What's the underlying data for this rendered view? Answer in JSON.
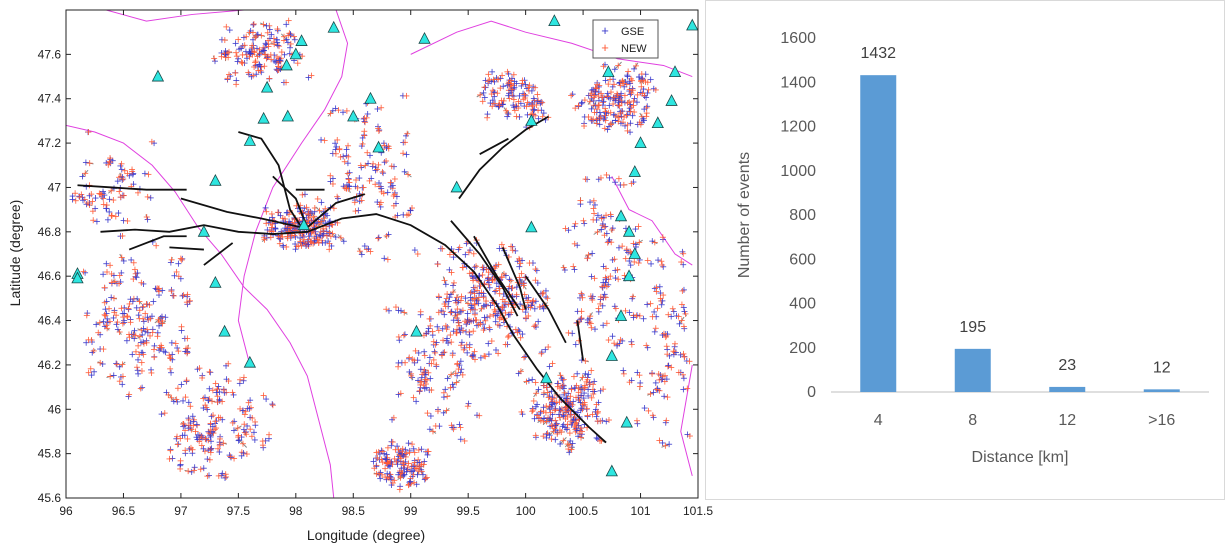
{
  "chart_data": [
    {
      "type": "scatter",
      "xlabel": "Longitude (degree)",
      "ylabel": "Latitude (degree)",
      "xlim": [
        96,
        101.5
      ],
      "ylim": [
        45.6,
        47.8
      ],
      "xticks": [
        "96",
        "96.5",
        "97",
        "97.5",
        "98",
        "98.5",
        "99",
        "99.5",
        "100",
        "100.5",
        "101",
        "101.5"
      ],
      "yticks": [
        "45.6",
        "45.8",
        "46",
        "46.2",
        "46.4",
        "46.6",
        "46.8",
        "47",
        "47.2",
        "47.4",
        "47.6"
      ],
      "legend": {
        "position": "top-right",
        "entries": [
          "GSE",
          "NEW"
        ]
      },
      "series": [
        {
          "name": "GSE",
          "color": "#3a3acc",
          "marker": "+"
        },
        {
          "name": "NEW",
          "color": "#ff5a36",
          "marker": "+"
        }
      ],
      "stations": [
        [
          96.8,
          47.5
        ],
        [
          97.3,
          47.03
        ],
        [
          97.2,
          46.8
        ],
        [
          97.3,
          46.57
        ],
        [
          97.38,
          46.35
        ],
        [
          97.6,
          46.21
        ],
        [
          97.6,
          47.21
        ],
        [
          97.72,
          47.31
        ],
        [
          97.75,
          47.45
        ],
        [
          97.92,
          47.55
        ],
        [
          97.93,
          47.32
        ],
        [
          98.0,
          47.6
        ],
        [
          98.05,
          47.66
        ],
        [
          98.07,
          46.83
        ],
        [
          98.33,
          47.72
        ],
        [
          98.5,
          47.32
        ],
        [
          98.65,
          47.4
        ],
        [
          98.72,
          47.18
        ],
        [
          99.05,
          46.35
        ],
        [
          99.12,
          47.67
        ],
        [
          99.4,
          47.0
        ],
        [
          100.05,
          46.82
        ],
        [
          100.05,
          47.3
        ],
        [
          100.25,
          47.75
        ],
        [
          100.72,
          47.52
        ],
        [
          100.75,
          46.24
        ],
        [
          100.75,
          45.72
        ],
        [
          100.83,
          46.87
        ],
        [
          100.83,
          46.42
        ],
        [
          100.88,
          45.94
        ],
        [
          100.9,
          46.8
        ],
        [
          100.9,
          46.6
        ],
        [
          100.95,
          46.7
        ],
        [
          100.95,
          47.07
        ],
        [
          101.0,
          47.2
        ],
        [
          101.15,
          47.29
        ],
        [
          101.27,
          47.39
        ],
        [
          101.3,
          47.52
        ],
        [
          101.45,
          47.73
        ],
        [
          100.18,
          46.14
        ],
        [
          96.1,
          46.61
        ],
        [
          96.1,
          46.59
        ]
      ],
      "faults": [
        [
          [
            96.1,
            47.01
          ],
          [
            96.4,
            47.0
          ],
          [
            96.7,
            46.99
          ],
          [
            97.05,
            46.99
          ]
        ],
        [
          [
            96.3,
            46.8
          ],
          [
            96.6,
            46.81
          ],
          [
            96.9,
            46.8
          ],
          [
            97.2,
            46.83
          ],
          [
            97.5,
            46.8
          ],
          [
            97.8,
            46.79
          ],
          [
            98.1,
            46.8
          ],
          [
            98.4,
            46.86
          ],
          [
            98.7,
            46.88
          ],
          [
            99.0,
            46.83
          ],
          [
            99.3,
            46.74
          ],
          [
            99.55,
            46.62
          ],
          [
            99.75,
            46.47
          ],
          [
            99.9,
            46.33
          ],
          [
            100.1,
            46.18
          ],
          [
            100.3,
            46.05
          ],
          [
            100.55,
            45.92
          ],
          [
            100.7,
            45.85
          ]
        ],
        [
          [
            97.5,
            47.25
          ],
          [
            97.7,
            47.22
          ],
          [
            97.85,
            47.1
          ],
          [
            97.95,
            46.9
          ],
          [
            98.05,
            46.82
          ]
        ],
        [
          [
            97.0,
            46.95
          ],
          [
            97.4,
            46.89
          ],
          [
            97.7,
            46.86
          ],
          [
            98.05,
            46.82
          ]
        ],
        [
          [
            97.8,
            47.05
          ],
          [
            98.0,
            46.95
          ],
          [
            98.1,
            46.82
          ]
        ],
        [
          [
            98.1,
            46.82
          ],
          [
            98.35,
            46.93
          ],
          [
            98.6,
            46.97
          ]
        ],
        [
          [
            98.0,
            46.99
          ],
          [
            98.25,
            46.99
          ]
        ],
        [
          [
            99.35,
            46.85
          ],
          [
            99.6,
            46.7
          ],
          [
            99.8,
            46.55
          ],
          [
            99.93,
            46.42
          ]
        ],
        [
          [
            99.55,
            46.78
          ],
          [
            99.75,
            46.6
          ],
          [
            99.95,
            46.45
          ]
        ],
        [
          [
            99.8,
            46.73
          ],
          [
            99.95,
            46.55
          ],
          [
            100.0,
            46.45
          ]
        ],
        [
          [
            100.0,
            46.6
          ],
          [
            100.2,
            46.45
          ],
          [
            100.35,
            46.3
          ]
        ],
        [
          [
            100.45,
            46.4
          ],
          [
            100.5,
            46.22
          ]
        ],
        [
          [
            99.42,
            46.95
          ],
          [
            99.6,
            47.08
          ],
          [
            99.8,
            47.18
          ],
          [
            100.0,
            47.26
          ],
          [
            100.2,
            47.32
          ]
        ],
        [
          [
            99.6,
            47.15
          ],
          [
            99.85,
            47.22
          ]
        ],
        [
          [
            96.55,
            46.72
          ],
          [
            96.85,
            46.78
          ],
          [
            97.05,
            46.78
          ]
        ],
        [
          [
            96.9,
            46.73
          ],
          [
            97.2,
            46.72
          ]
        ],
        [
          [
            97.2,
            46.65
          ],
          [
            97.45,
            46.75
          ]
        ]
      ],
      "boundaries": [
        [
          [
            96.0,
            47.28
          ],
          [
            96.25,
            47.25
          ],
          [
            96.5,
            47.2
          ],
          [
            96.75,
            47.1
          ],
          [
            96.95,
            46.98
          ],
          [
            97.15,
            46.82
          ],
          [
            97.35,
            46.7
          ],
          [
            97.55,
            46.55
          ],
          [
            97.75,
            46.45
          ],
          [
            97.95,
            46.3
          ],
          [
            98.1,
            46.15
          ],
          [
            98.2,
            45.95
          ],
          [
            98.3,
            45.75
          ],
          [
            98.33,
            45.6
          ]
        ],
        [
          [
            96.35,
            47.8
          ],
          [
            96.7,
            47.75
          ],
          [
            97.1,
            47.78
          ],
          [
            97.55,
            47.8
          ]
        ],
        [
          [
            98.35,
            47.8
          ],
          [
            98.45,
            47.65
          ],
          [
            98.4,
            47.5
          ],
          [
            98.25,
            47.35
          ],
          [
            98.05,
            47.2
          ],
          [
            97.8,
            47.0
          ],
          [
            97.65,
            46.8
          ],
          [
            97.55,
            46.6
          ],
          [
            97.5,
            46.4
          ],
          [
            97.6,
            46.2
          ]
        ],
        [
          [
            99.0,
            47.6
          ],
          [
            99.4,
            47.7
          ],
          [
            99.7,
            47.75
          ],
          [
            100.0,
            47.7
          ],
          [
            100.4,
            47.65
          ],
          [
            100.8,
            47.58
          ],
          [
            101.2,
            47.55
          ],
          [
            101.45,
            47.5
          ]
        ],
        [
          [
            100.75,
            47.05
          ],
          [
            100.9,
            46.9
          ],
          [
            101.1,
            46.85
          ],
          [
            101.3,
            46.7
          ],
          [
            101.45,
            46.65
          ]
        ],
        [
          [
            101.45,
            46.2
          ],
          [
            101.35,
            45.9
          ],
          [
            101.45,
            45.7
          ]
        ]
      ]
    },
    {
      "type": "bar",
      "categories": [
        "4",
        "8",
        "12",
        ">16"
      ],
      "values": [
        1432,
        195,
        23,
        12
      ],
      "xlabel": "Distance [km]",
      "ylabel": "Number of events",
      "ylim": [
        0,
        1600
      ],
      "yticks": [
        "0",
        "200",
        "400",
        "600",
        "800",
        "1000",
        "1200",
        "1400",
        "1600"
      ],
      "color": "#5b9bd5",
      "grid": false
    }
  ]
}
